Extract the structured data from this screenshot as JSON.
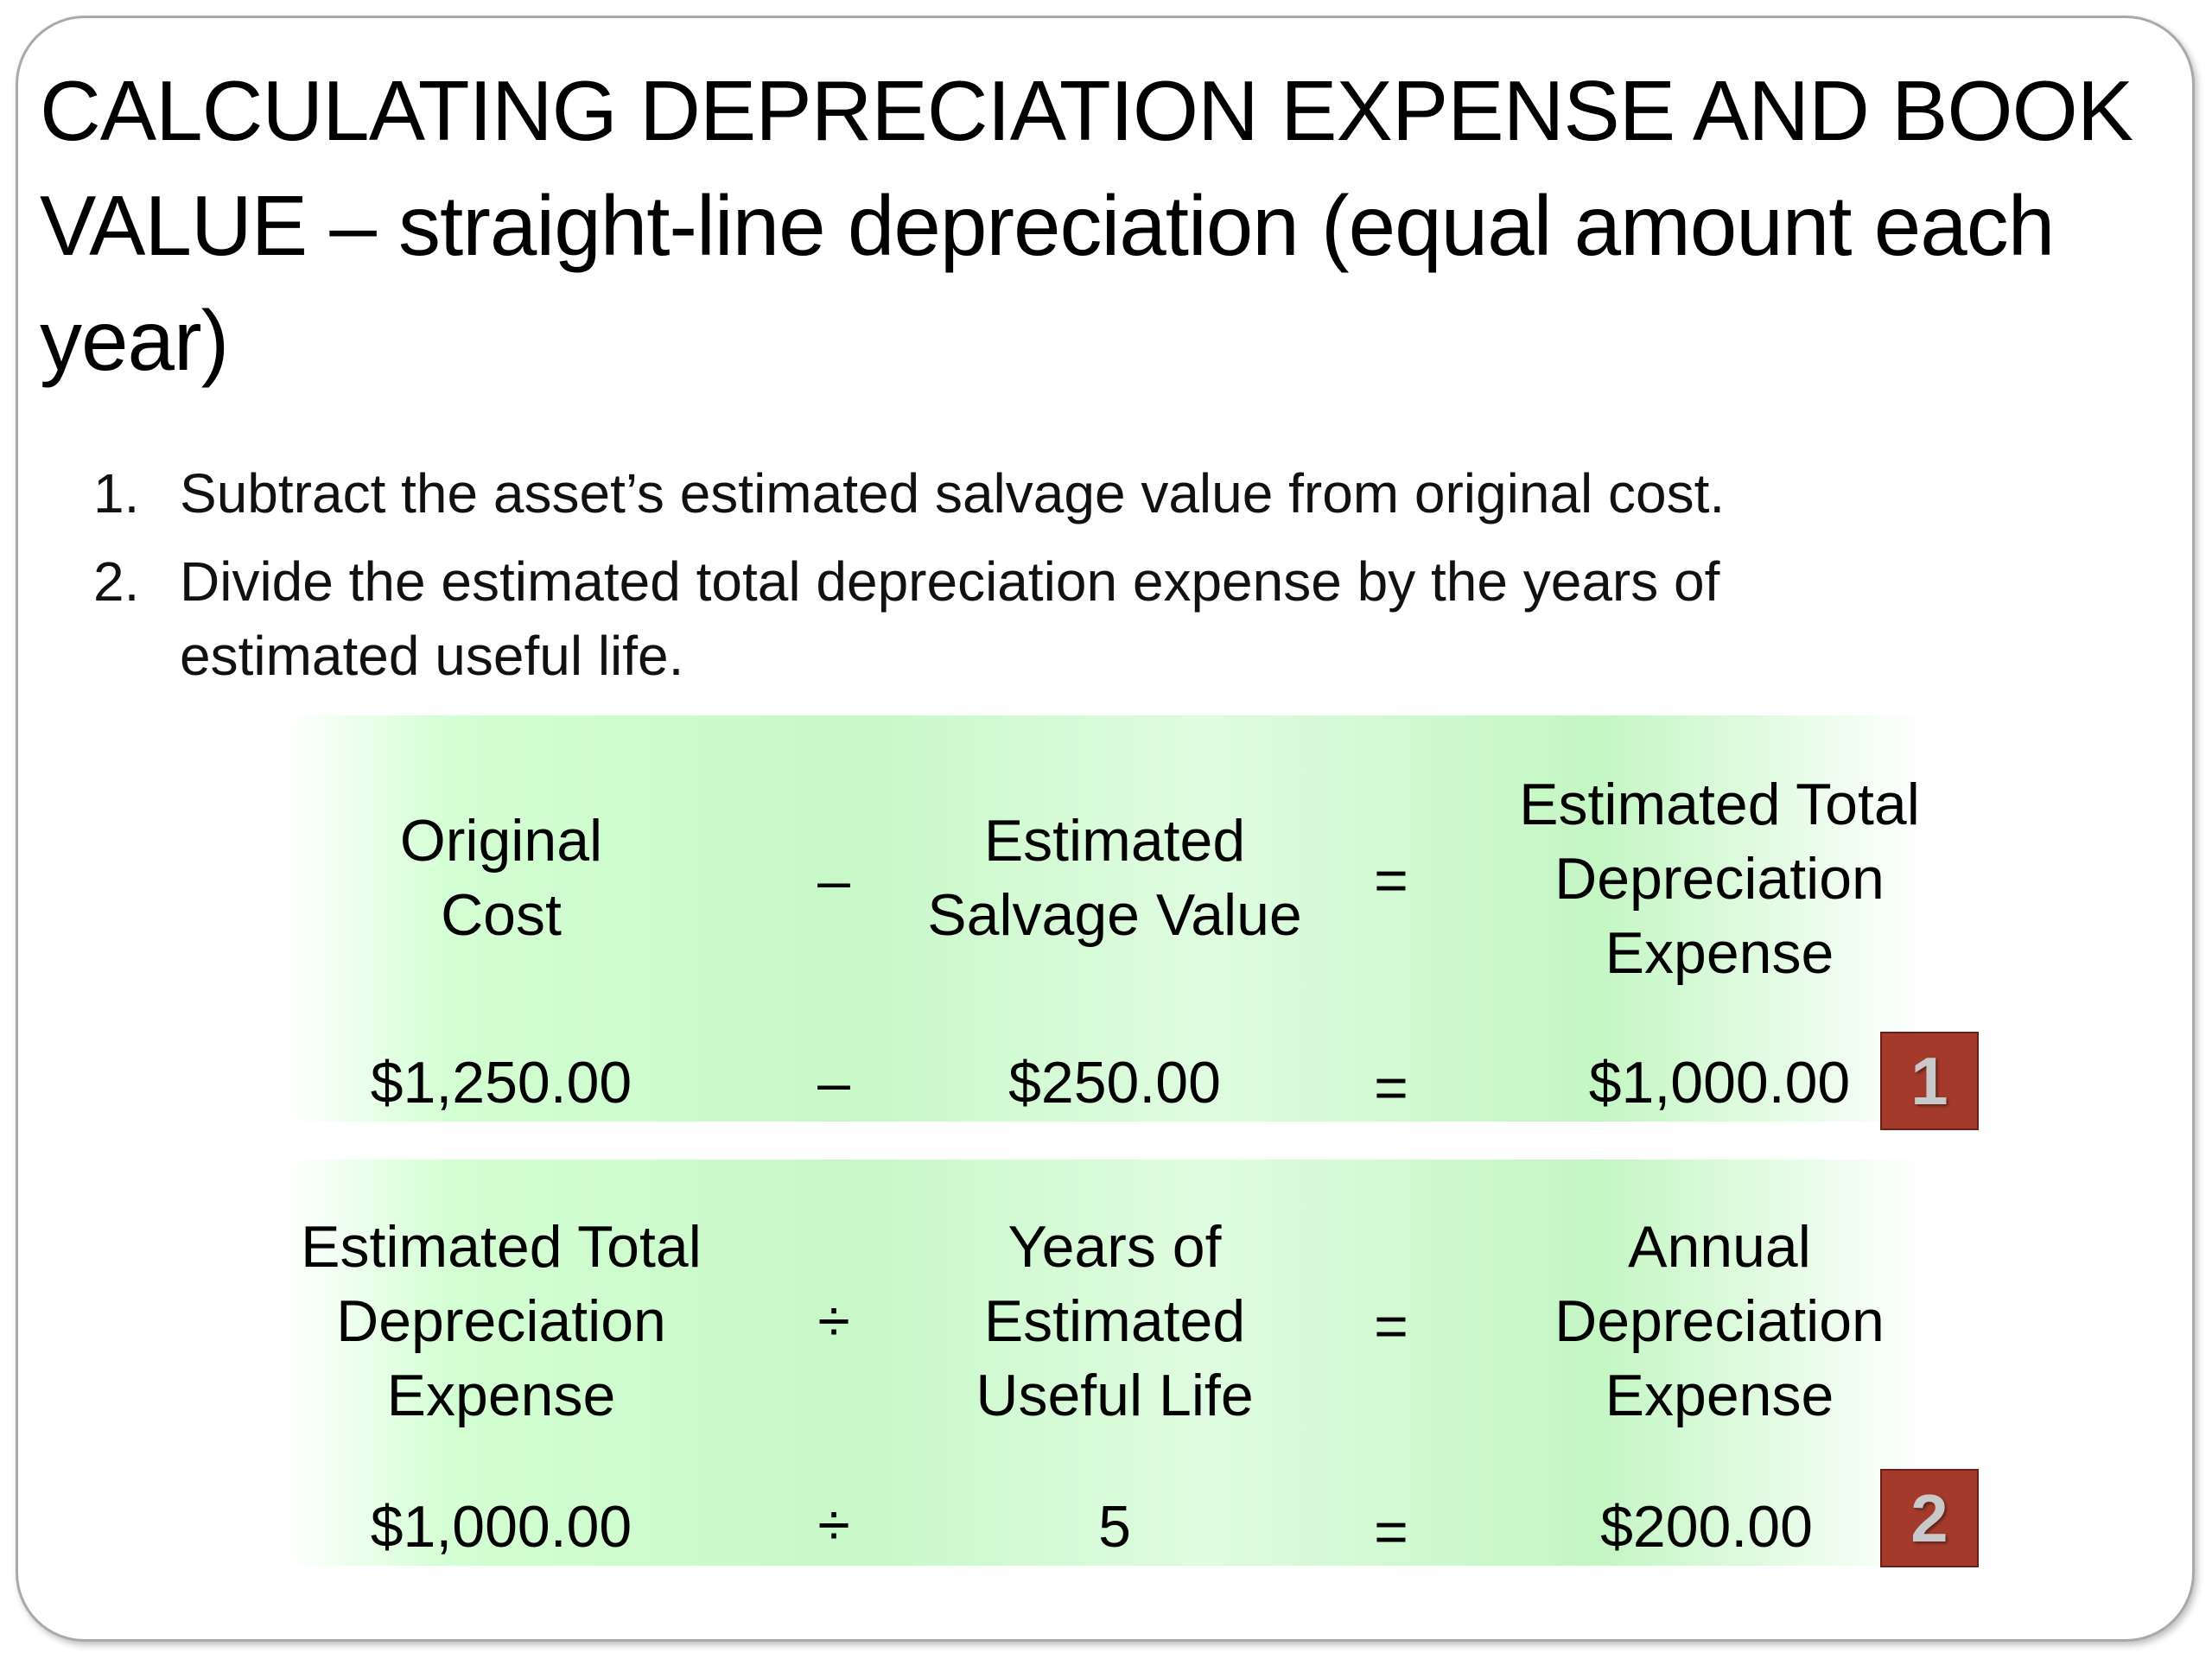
{
  "title": "CALCULATING DEPRECIATION EXPENSE AND BOOK VALUE – straight-line depreciation (equal amount each year)",
  "steps": [
    {
      "number": "1.",
      "text": "Subtract the asset’s estimated salvage value from original cost."
    },
    {
      "number": "2.",
      "text": "Divide the estimated total depreciation expense by the years of estimated useful life."
    }
  ],
  "formula1": {
    "header": {
      "operand1": "Original Cost",
      "operator": "–",
      "operand2": "Estimated Salvage Value",
      "equals": "=",
      "result": "Estimated Total Depreciation Expense"
    },
    "values": {
      "operand1": "$1,250.00",
      "operator": "–",
      "operand2": "$250.00",
      "equals": "=",
      "result": "$1,000.00"
    },
    "badge": "1"
  },
  "formula2": {
    "header": {
      "operand1": "Estimated Total Depreciation Expense",
      "operator": "÷",
      "operand2": "Years of Estimated Useful Life",
      "equals": "=",
      "result": "Annual Depreciation Expense"
    },
    "values": {
      "operand1": "$1,000.00",
      "operator": "÷",
      "operand2": "5",
      "equals": "=",
      "result": "$200.00"
    },
    "badge": "2"
  },
  "colors": {
    "band_green": "#c8f8c8",
    "badge_red": "#a33a2c",
    "badge_text": "#c9c9c9"
  }
}
